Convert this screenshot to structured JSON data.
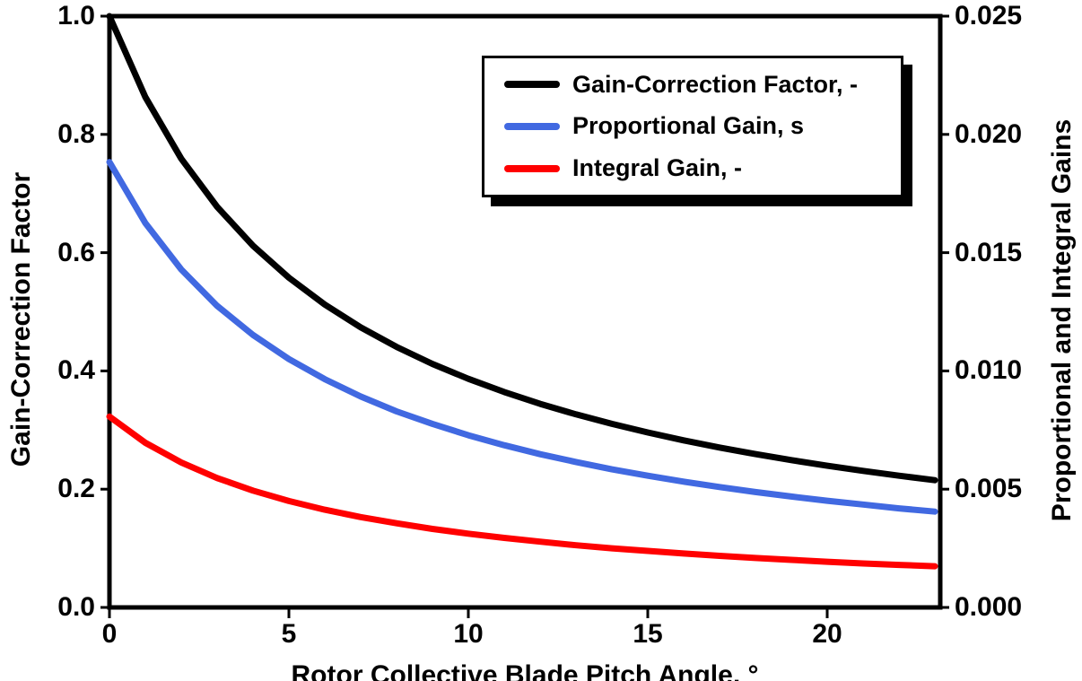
{
  "chart_data": {
    "type": "line",
    "title": "",
    "xlabel": "Rotor Collective Blade Pitch Angle, °",
    "ylabel_left": "Gain-Correction Factor",
    "ylabel_right": "Proportional and Integral Gains",
    "xlim": [
      0,
      23.15
    ],
    "ylim_left": [
      0,
      1.0
    ],
    "ylim_right": [
      0,
      0.025
    ],
    "x_ticks": [
      "0",
      "5",
      "10",
      "15",
      "20"
    ],
    "y_ticks_left": [
      "0.0",
      "0.2",
      "0.4",
      "0.6",
      "0.8",
      "1.0"
    ],
    "y_ticks_right": [
      "0.000",
      "0.005",
      "0.010",
      "0.015",
      "0.020",
      "0.025"
    ],
    "grid": false,
    "legend_position": "top-center",
    "x": [
      0,
      1,
      2,
      3,
      4,
      5,
      6,
      7,
      8,
      9,
      10,
      11,
      12,
      13,
      14,
      15,
      16,
      17,
      18,
      19,
      20,
      21,
      22,
      23
    ],
    "series": [
      {
        "name": "Gain-Correction Factor, -",
        "axis": "left",
        "color": "#000000",
        "values": [
          1.0,
          0.8631,
          0.7591,
          0.6775,
          0.6117,
          0.5576,
          0.5123,
          0.4738,
          0.4406,
          0.4119,
          0.3866,
          0.3643,
          0.3443,
          0.3265,
          0.3104,
          0.2959,
          0.2826,
          0.2704,
          0.2593,
          0.2491,
          0.2396,
          0.2309,
          0.2227,
          0.2152
        ]
      },
      {
        "name": "Proportional Gain, s",
        "axis": "right",
        "color": "#4169E1",
        "values": [
          0.01883,
          0.01625,
          0.01429,
          0.01275,
          0.01152,
          0.0105,
          0.00965,
          0.00892,
          0.00829,
          0.00776,
          0.00728,
          0.00686,
          0.00648,
          0.00615,
          0.00584,
          0.00557,
          0.00532,
          0.00509,
          0.00488,
          0.00469,
          0.00451,
          0.00435,
          0.00419,
          0.00405
        ]
      },
      {
        "name": "Integral Gain, -",
        "axis": "right",
        "color": "#FF0000",
        "values": [
          0.00807,
          0.00696,
          0.00613,
          0.00547,
          0.00494,
          0.0045,
          0.00413,
          0.00382,
          0.00356,
          0.00332,
          0.00312,
          0.00294,
          0.00278,
          0.00263,
          0.0025,
          0.00239,
          0.00228,
          0.00218,
          0.00209,
          0.00201,
          0.00193,
          0.00186,
          0.0018,
          0.00174
        ]
      }
    ]
  }
}
